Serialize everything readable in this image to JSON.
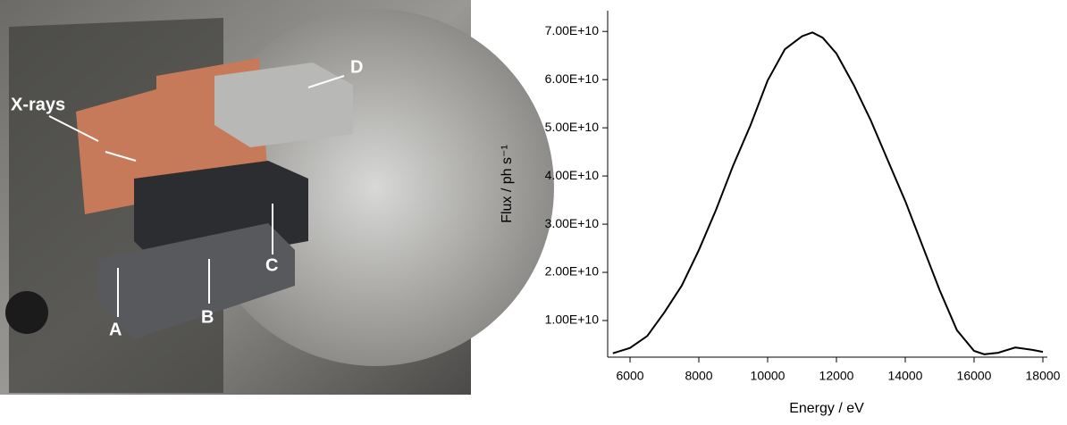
{
  "photo": {
    "labels": [
      "X-rays",
      "A",
      "B",
      "C",
      "D"
    ]
  },
  "chart_data": {
    "type": "line",
    "x_label": "Energy / eV",
    "y_label": "Flux / ph s⁻¹",
    "x": [
      5500,
      6000,
      6500,
      7000,
      7500,
      8000,
      8500,
      9000,
      9500,
      10000,
      10500,
      11000,
      11300,
      11600,
      12000,
      12500,
      13000,
      13500,
      14000,
      14500,
      15000,
      15500,
      16000,
      16300,
      16700,
      17200,
      17700,
      18000
    ],
    "values": [
      3200000000.0,
      4300000000.0,
      6800000000.0,
      11700000000.0,
      17200000000.0,
      24600000000.0,
      33000000000.0,
      42200000000.0,
      50500000000.0,
      59800000000.0,
      66300000000.0,
      69000000000.0,
      69800000000.0,
      68700000000.0,
      65400000000.0,
      58900000000.0,
      51500000000.0,
      43100000000.0,
      34800000000.0,
      25500000000.0,
      16300000000.0,
      8000000000.0,
      3700000000.0,
      3000000000.0,
      3300000000.0,
      4400000000.0,
      3900000000.0,
      3500000000.0
    ],
    "color": "#000000",
    "xlim": [
      5350,
      18130
    ],
    "xticks": [
      6000,
      8000,
      10000,
      12000,
      14000,
      16000,
      18000
    ],
    "ylim": [
      2400000000.0,
      74300000000.0
    ],
    "yticks": [
      {
        "value": 10000000000.0,
        "label": "1.00E+10"
      },
      {
        "value": 20000000000.0,
        "label": "2.00E+10"
      },
      {
        "value": 30000000000.0,
        "label": "3.00E+10"
      },
      {
        "value": 40000000000.0,
        "label": "4.00E+10"
      },
      {
        "value": 50000000000.0,
        "label": "5.00E+10"
      },
      {
        "value": 60000000000.0,
        "label": "6.00E+10"
      },
      {
        "value": 70000000000.0,
        "label": "7.00E+10"
      }
    ]
  }
}
